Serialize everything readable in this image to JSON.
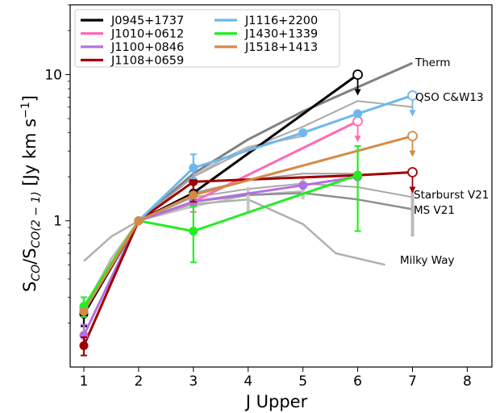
{
  "chart_data": {
    "type": "line",
    "xlabel": "J Upper",
    "ylabel_main": "S",
    "ylabel_sub1": "CO",
    "ylabel_mid": "/S",
    "ylabel_sub2": "CO(2 − 1)",
    "ylabel_unit_open": " [Jy km s",
    "ylabel_unit_sup": "−1",
    "ylabel_unit_close": "]",
    "xlim": [
      0.75,
      8.45
    ],
    "ylim": [
      0.1,
      30
    ],
    "yscale": "log",
    "xticks": [
      1,
      2,
      3,
      4,
      5,
      6,
      7,
      8
    ],
    "xtick_labels": [
      "1",
      "2",
      "3",
      "4",
      "5",
      "6",
      "7",
      "8"
    ],
    "yticks": [
      1,
      10
    ],
    "ytick_labels": [
      "1",
      "10"
    ],
    "legend_position": "top-left",
    "reference_models": [
      {
        "label": "Therm",
        "color": "#808080",
        "width": 3,
        "x": [
          2,
          3,
          4,
          5,
          6,
          7
        ],
        "y": [
          1,
          2.1,
          3.6,
          5.6,
          8.2,
          12
        ]
      },
      {
        "label": "QSO C&W13",
        "color": "#a9a9a9",
        "width": 2,
        "x": [
          2,
          3,
          4,
          5,
          6,
          7
        ],
        "y": [
          1,
          2.0,
          3.1,
          4.4,
          6.6,
          6.0
        ]
      },
      {
        "label": "Starburst V21",
        "color": "#a9a9a9",
        "width": 2,
        "x": [
          2,
          3,
          4,
          5,
          6,
          7
        ],
        "y": [
          1,
          1.45,
          1.65,
          1.8,
          1.7,
          1.45
        ]
      },
      {
        "label": "MS V21",
        "color": "#909090",
        "width": 2.5,
        "x": [
          2,
          3,
          4,
          5,
          6,
          7
        ],
        "y": [
          1,
          1.35,
          1.5,
          1.55,
          1.4,
          1.2
        ]
      },
      {
        "label": "Milky Way",
        "color": "#b0b0b0",
        "width": 2.5,
        "x": [
          1,
          1.5,
          2,
          3,
          4,
          5,
          5.6,
          6.5
        ],
        "y": [
          0.53,
          0.78,
          1,
          1.3,
          1.4,
          0.95,
          0.6,
          0.5
        ]
      }
    ],
    "extra_curves": [
      {
        "color": "#b8b8b8",
        "width": 2.5,
        "x": [
          1,
          1.5,
          2,
          3,
          3.5,
          4,
          5
        ],
        "y": [
          0.25,
          0.55,
          1,
          2.0,
          2.6,
          3.2,
          3.8
        ]
      },
      {
        "color": "#c0c0c0",
        "width": 2,
        "x": [
          2,
          3,
          4,
          5
        ],
        "y": [
          1,
          1.25,
          1.5,
          1.6
        ]
      },
      {
        "color": "#a0a0a0",
        "width": 2,
        "x": [
          2,
          3,
          4,
          5,
          6
        ],
        "y": [
          1,
          1.55,
          1.9,
          2.1,
          2.1
        ]
      }
    ],
    "ref_error_bars": [
      {
        "x": 7,
        "lo": 0.78,
        "hi": 1.6,
        "color": "#bbbbbb"
      },
      {
        "x": 5,
        "lo": 1.4,
        "hi": 2.0,
        "color": "#c8c8c8"
      },
      {
        "x": 4,
        "lo": 1.15,
        "hi": 1.7,
        "color": "#c8c8c8"
      }
    ],
    "series": [
      {
        "name": "J0945+1737",
        "color": "#000000",
        "x": [
          1,
          2,
          3,
          6
        ],
        "y": [
          0.23,
          1,
          1.55,
          10
        ],
        "yerr": [
          [
            0.04,
            0.07
          ],
          [
            0,
            0
          ],
          [
            0.25,
            0.3
          ],
          [
            0,
            0
          ]
        ],
        "upper_limits": [
          6
        ]
      },
      {
        "name": "J1010+0612",
        "color": "#ff69b4",
        "x": [
          1,
          2,
          3,
          6
        ],
        "y": [
          0.25,
          1,
          1.35,
          4.8
        ],
        "yerr": [
          [
            0,
            0
          ],
          [
            0,
            0
          ],
          [
            0.2,
            0.2
          ],
          [
            0,
            0
          ]
        ],
        "upper_limits": [
          6
        ]
      },
      {
        "name": "J1100+0846",
        "color": "#b370e0",
        "x": [
          1,
          2,
          3,
          5,
          6
        ],
        "y": [
          0.165,
          1,
          1.35,
          1.75,
          2.0
        ],
        "yerr": [
          [
            0.03,
            0.03
          ],
          [
            0,
            0
          ],
          [
            0.1,
            0.1
          ],
          [
            0,
            0
          ],
          [
            0,
            0
          ]
        ],
        "upper_limits": []
      },
      {
        "name": "J1108+0659",
        "color": "#a00000",
        "x": [
          1,
          2,
          3,
          6,
          7
        ],
        "y": [
          0.14,
          1,
          1.85,
          2.05,
          2.15
        ],
        "yerr": [
          [
            0.02,
            0.02
          ],
          [
            0,
            0
          ],
          [
            0.5,
            0.5
          ],
          [
            0,
            0
          ],
          [
            0,
            0
          ]
        ],
        "upper_limits": [
          7
        ]
      },
      {
        "name": "J1116+2200",
        "color": "#6cb8ee",
        "x": [
          1,
          2,
          3,
          5,
          6,
          7
        ],
        "y": [
          0.25,
          1,
          2.3,
          4.0,
          5.4,
          7.2
        ],
        "yerr": [
          [
            0,
            0
          ],
          [
            0,
            0
          ],
          [
            0.35,
            0.55
          ],
          [
            0,
            0
          ],
          [
            0,
            0
          ],
          [
            0,
            0
          ]
        ],
        "upper_limits": [
          7
        ]
      },
      {
        "name": "J1430+1339",
        "color": "#22ee22",
        "x": [
          1,
          2,
          3,
          6
        ],
        "y": [
          0.26,
          1,
          0.85,
          2.05
        ],
        "yerr": [
          [
            0.04,
            0.04
          ],
          [
            0,
            0
          ],
          [
            0.33,
            0.4
          ],
          [
            1.2,
            1.2
          ]
        ],
        "upper_limits": []
      },
      {
        "name": "J1518+1413",
        "color": "#d48a45",
        "x": [
          1,
          2,
          3,
          7
        ],
        "y": [
          0.24,
          1,
          1.5,
          3.8
        ],
        "yerr": [
          [
            0,
            0
          ],
          [
            0,
            0
          ],
          [
            0,
            0
          ],
          [
            0,
            0
          ]
        ],
        "upper_limits": [
          7
        ]
      }
    ]
  }
}
